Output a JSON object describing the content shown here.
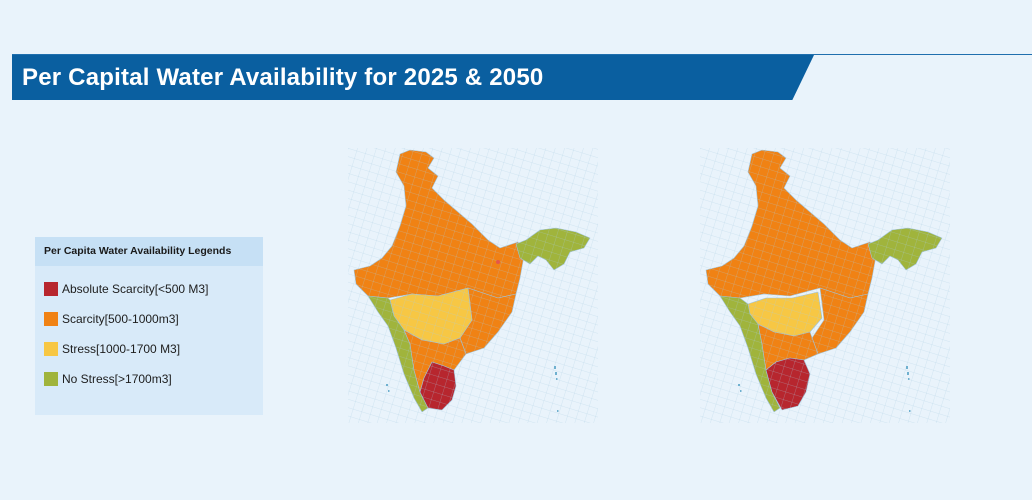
{
  "title": "Per Capital Water Availability for 2025 & 2050",
  "legend": {
    "heading": "Per Capita Water Availability Legends",
    "items": [
      {
        "label": "Absolute Scarcity[<500 M3]",
        "color": "#b7262e"
      },
      {
        "label": "Scarcity[500-1000m3]",
        "color": "#f08214"
      },
      {
        "label": "Stress[1000-1700 M3]",
        "color": "#f7c744"
      },
      {
        "label": "No Stress[>1700m3]",
        "color": "#a0b43c"
      }
    ]
  },
  "maps": [
    {
      "subject": "India districts 2025",
      "categories_shown": [
        "Absolute Scarcity",
        "Scarcity",
        "Stress",
        "No Stress"
      ]
    },
    {
      "subject": "India districts 2050",
      "categories_shown": [
        "Absolute Scarcity",
        "Scarcity",
        "Stress",
        "No Stress"
      ]
    }
  ],
  "colors": {
    "banner": "#0a5fa0",
    "background": "#e9f3fb",
    "district_border": "#9fc3da"
  }
}
